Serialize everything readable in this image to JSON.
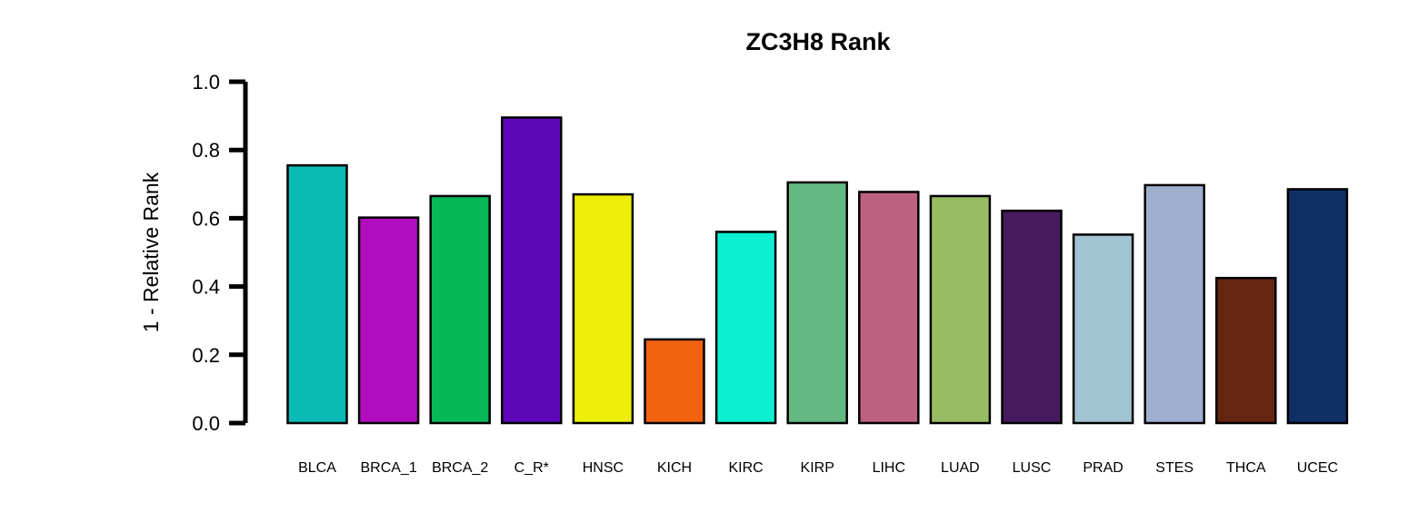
{
  "chart_data": {
    "type": "bar",
    "title": "ZC3H8 Rank",
    "xlabel": "",
    "ylabel": "1 - Relative Rank",
    "ylim": [
      0,
      1.0
    ],
    "yticks": [
      0.0,
      0.2,
      0.4,
      0.6,
      0.8,
      1.0
    ],
    "ytick_labels": [
      "0.0",
      "0.2",
      "0.4",
      "0.6",
      "0.8",
      "1.0"
    ],
    "grid": false,
    "legend": "none",
    "categories": [
      "BLCA",
      "BRCA_1",
      "BRCA_2",
      "C_R*",
      "HNSC",
      "KICH",
      "KIRC",
      "KIRP",
      "LIHC",
      "LUAD",
      "LUSC",
      "PRAD",
      "STES",
      "THCA",
      "UCEC"
    ],
    "values": [
      0.755,
      0.602,
      0.665,
      0.895,
      0.67,
      0.245,
      0.56,
      0.705,
      0.677,
      0.665,
      0.622,
      0.552,
      0.697,
      0.425,
      0.685
    ],
    "colors": [
      "#0ABAB5",
      "#B10DBE",
      "#07B859",
      "#5E07B8",
      "#EEEE0A",
      "#F26110",
      "#0DEFD2",
      "#62B981",
      "#BE6180",
      "#97BC61",
      "#461A5F",
      "#A2C4D2",
      "#A0AED0",
      "#652611",
      "#0F2F65"
    ]
  }
}
